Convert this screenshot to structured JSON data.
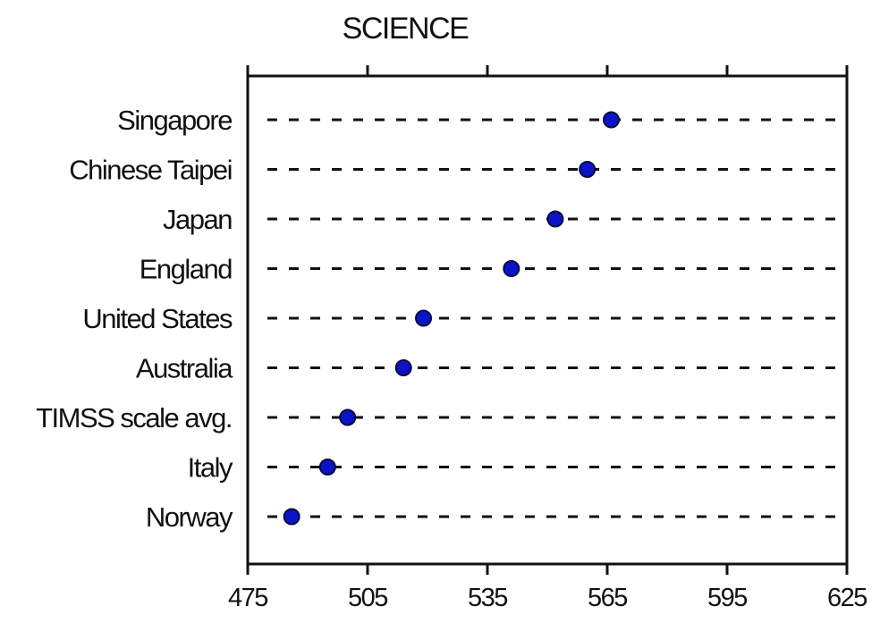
{
  "chart_data": {
    "type": "scatter",
    "title": "SCIENCE",
    "categories": [
      "Singapore",
      "Chinese Taipei",
      "Japan",
      "England",
      "United States",
      "Australia",
      "TIMSS scale avg.",
      "Italy",
      "Norway"
    ],
    "values": [
      566,
      560,
      552,
      541,
      519,
      514,
      500,
      495,
      486
    ],
    "xlim": [
      475,
      625
    ],
    "xticks": [
      475,
      505,
      535,
      565,
      595,
      625
    ],
    "grid": "dotted horizontal lines per category",
    "marker_color": "#0a14c8"
  }
}
